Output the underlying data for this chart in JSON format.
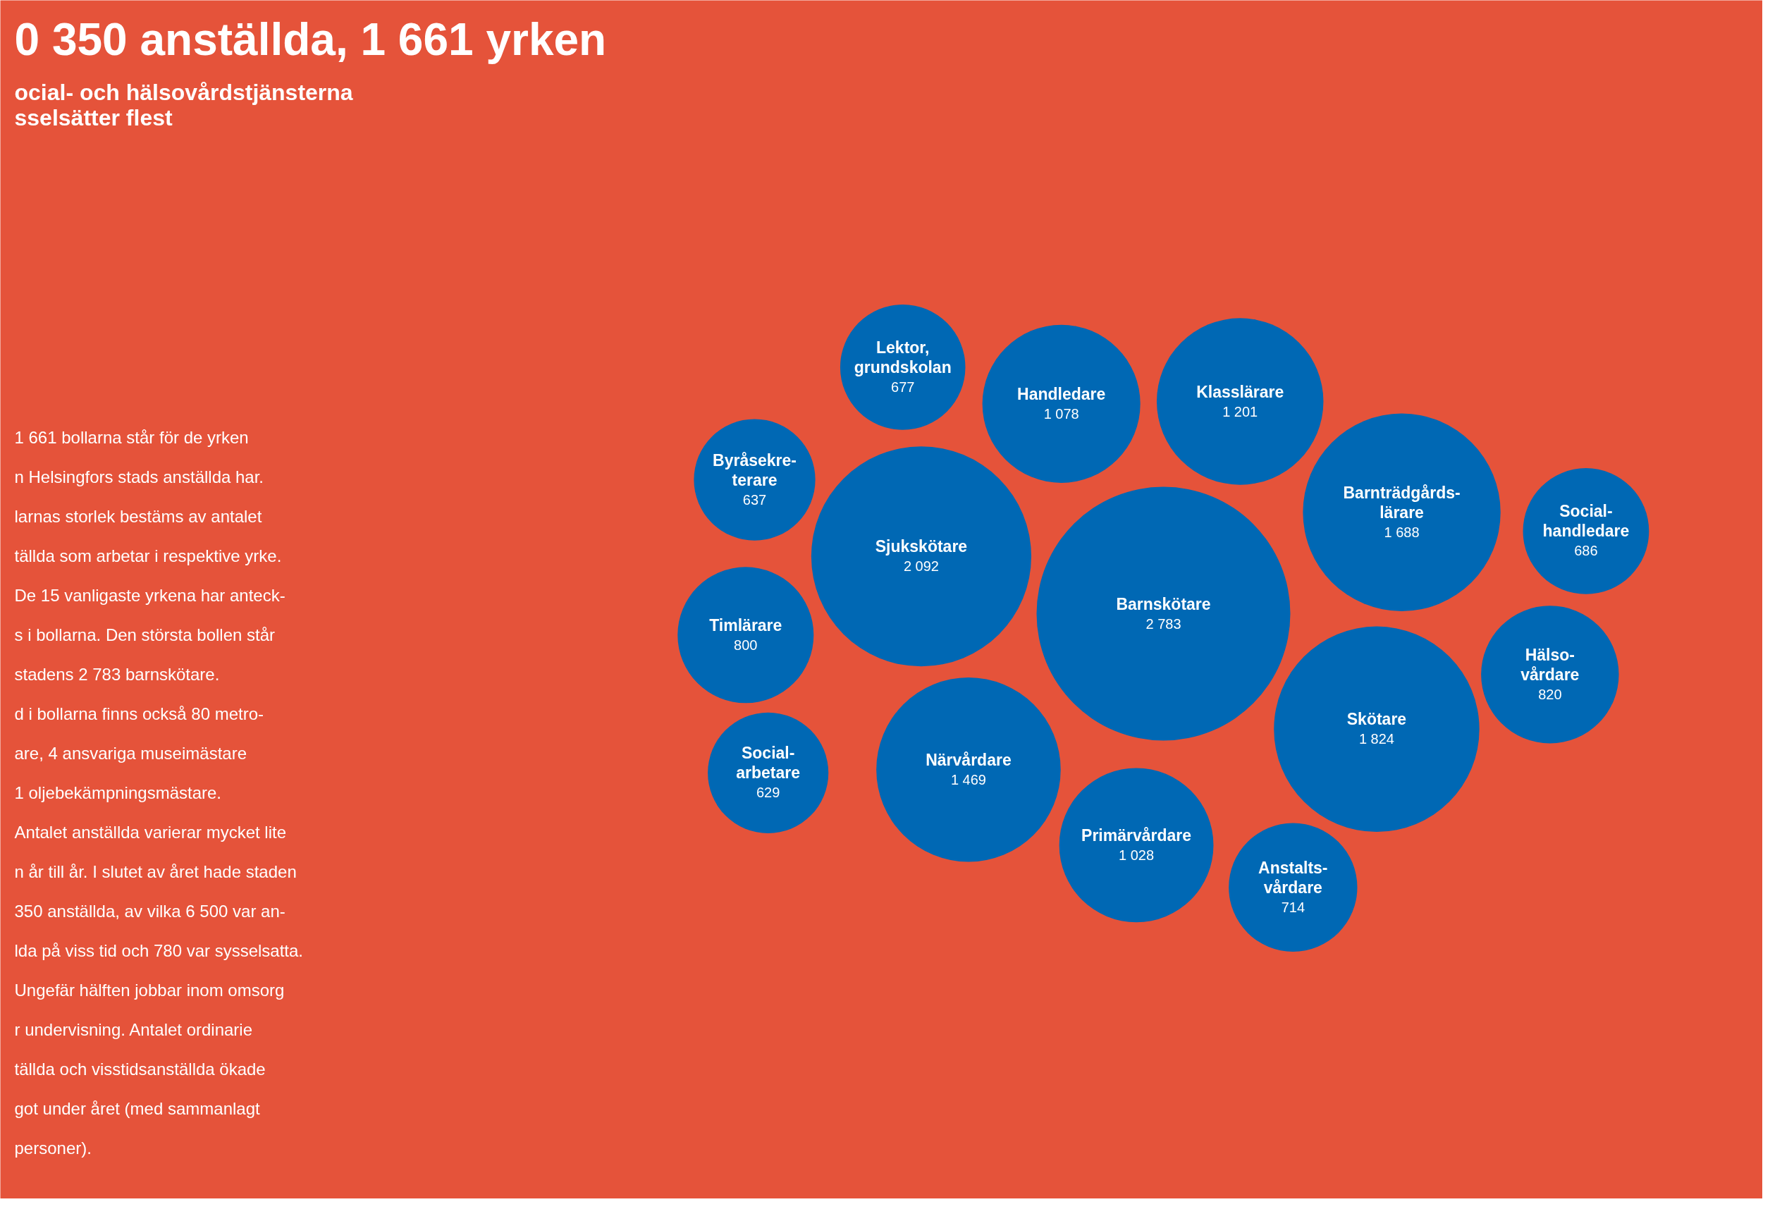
{
  "chart_data": {
    "type": "other",
    "title": "0 350 anställda, 1 661 yrken",
    "subtitle": "ocial- och hälsovårdstjänsterna\nsselsätter flest",
    "categories": [
      "Barnskötare",
      "Sjukskötare",
      "Skötare",
      "Barnträdgårds-\nlärare",
      "Närvårdare",
      "Klasslärare",
      "Handledare",
      "Primärvårdare",
      "Hälso-\nvårdare",
      "Timlärare",
      "Anstalts-\nvårdare",
      "Social-\nhandledare",
      "Lektor,\ngrundskolan",
      "Byråsekre-\nterare",
      "Social-\narbetare"
    ],
    "values": [
      2783,
      2092,
      1824,
      1688,
      1469,
      1201,
      1078,
      1028,
      820,
      800,
      714,
      686,
      677,
      637,
      629
    ],
    "value_labels": [
      "2 783",
      "2 092",
      "1 824",
      "1 688",
      "1 469",
      "1 201",
      "1 078",
      "1 028",
      "820",
      "800",
      "714",
      "686",
      "677",
      "637",
      "629"
    ],
    "color": "#0068b4",
    "annotations": [
      "1 661 bollarna står för de yrken",
      "n Helsingfors stads anställda har.",
      "larnas storlek bestäms av antalet",
      "tällda som arbetar i respektive yrke.",
      "De 15 vanligaste yrkena har anteck-",
      "s i bollarna. Den största bollen står",
      "stadens 2 783 barnskötare.",
      "d i bollarna finns också 80 metro-",
      "are, 4 ansvariga museimästare",
      " 1 oljebekämpningsmästare.",
      "Antalet anställda varierar mycket lite",
      "n år till år. I slutet av året hade staden",
      "350 anställda, av vilka 6 500 var an-",
      "lda på viss tid och 780 var sysselsatta.",
      "Ungefär hälften jobbar inom omsorg",
      "r undervisning. Antalet ordinarie",
      "tällda och visstidsanställda ökade",
      "got under året (med sammanlagt",
      " personer)."
    ]
  }
}
